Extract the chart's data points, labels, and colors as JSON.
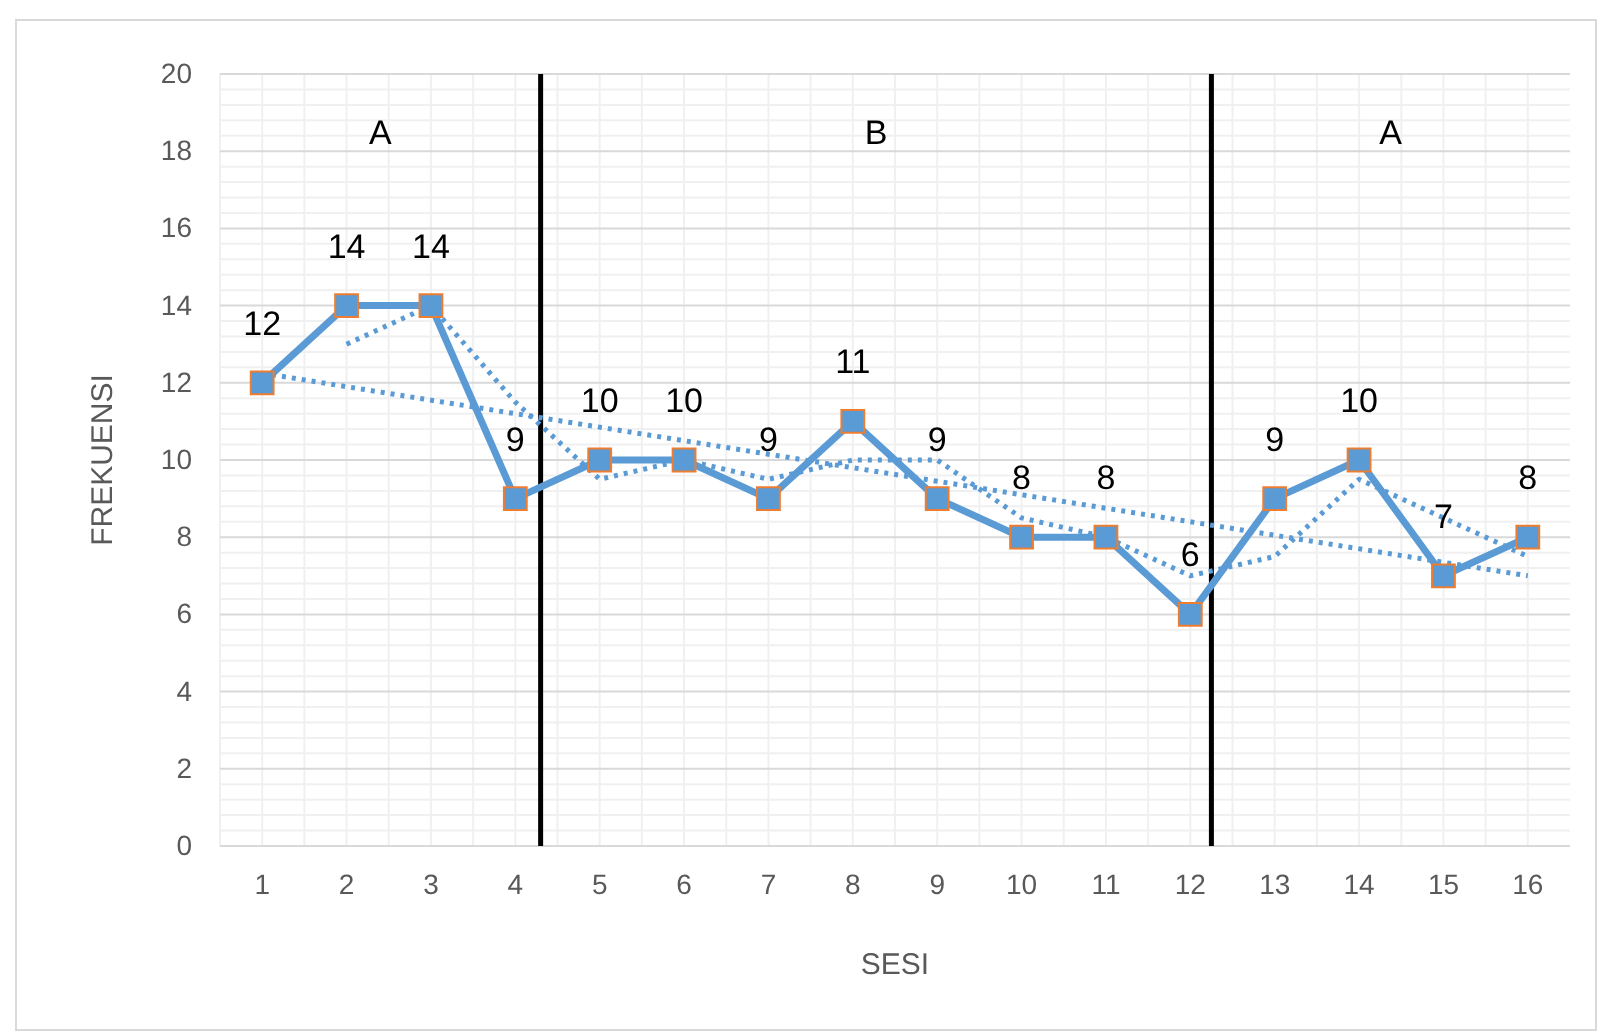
{
  "chart_data": {
    "type": "line",
    "xlabel": "SESI",
    "ylabel": "FREKUENSI",
    "x": [
      1,
      2,
      3,
      4,
      5,
      6,
      7,
      8,
      9,
      10,
      11,
      12,
      13,
      14,
      15,
      16
    ],
    "xlim": [
      0.5,
      16.5
    ],
    "xticks": [
      1,
      2,
      3,
      4,
      5,
      6,
      7,
      8,
      9,
      10,
      11,
      12,
      13,
      14,
      15,
      16
    ],
    "ylim": [
      0,
      20
    ],
    "yticks": [
      0,
      2,
      4,
      6,
      8,
      10,
      12,
      14,
      16,
      18,
      20
    ],
    "grid": true,
    "marker": "square",
    "series": [
      {
        "color": "#5b9bd5",
        "values": [
          12,
          14,
          14,
          9,
          10,
          10,
          9,
          11,
          9,
          8,
          8,
          6,
          9,
          10,
          7,
          8
        ],
        "data_labels": true
      },
      {
        "color": "#5b9bd5",
        "line_style": "dotted",
        "marker": "none",
        "values": [
          null,
          13,
          14,
          11.5,
          9.5,
          10,
          9.5,
          10,
          10,
          8.5,
          8,
          7,
          7.5,
          9.5,
          8.5,
          7.5
        ]
      },
      {
        "color": "#5b9bd5",
        "line_style": "dotted",
        "marker": "none",
        "x": [
          1,
          16
        ],
        "values": [
          12.25,
          7.0
        ]
      }
    ],
    "ref_lines": [
      {
        "axis": "x",
        "value": 4.3,
        "color": "#000000"
      },
      {
        "axis": "x",
        "value": 12.25,
        "color": "#000000"
      }
    ],
    "annotations": [
      "A",
      "B",
      "A"
    ]
  }
}
